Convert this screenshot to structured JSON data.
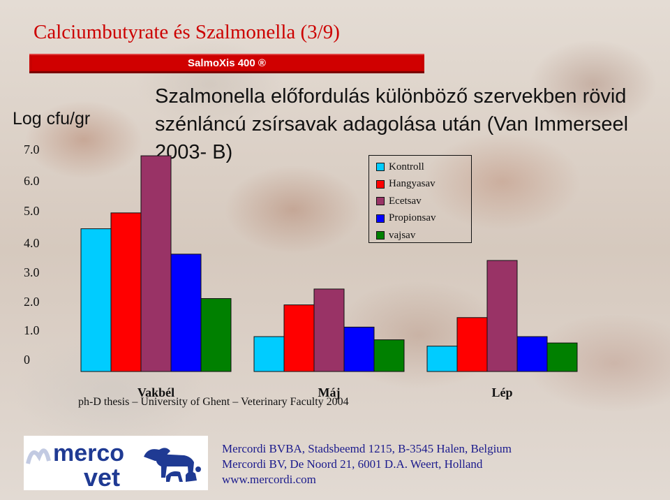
{
  "slide": {
    "title": "Calciumbutyrate és Szalmonella (3/9)",
    "brand_label": "SalmoXis 400 ®"
  },
  "colors": {
    "title": "#cc0000",
    "brand_bar": "#d00000",
    "company_text": "#1a1a8c",
    "logo_blue": "#1f3a93"
  },
  "chart_data": {
    "type": "bar",
    "title": "Szalmonella előfordulás különböző szervekben rövid szénláncú zsírsavak adagolása után (Van Immerseel 2003- B)",
    "ylabel": "Log cfu/gr",
    "ylim": [
      0,
      7
    ],
    "y_ticks": [
      "0",
      "1.0",
      "2.0",
      "3.0",
      "4.0",
      "5.0",
      "6.0",
      "7.0"
    ],
    "categories": [
      "Vakbél",
      "Máj",
      "Lép"
    ],
    "series": [
      {
        "name": "Kontroll",
        "color": "#00ccff",
        "values": [
          4.5,
          1.1,
          0.8
        ]
      },
      {
        "name": "Hangyasav",
        "color": "#ff0000",
        "values": [
          5.0,
          2.1,
          1.7
        ]
      },
      {
        "name": "Ecetsav",
        "color": "#993366",
        "values": [
          6.8,
          2.6,
          3.5
        ]
      },
      {
        "name": "Propionsav",
        "color": "#0000ff",
        "values": [
          3.7,
          1.4,
          1.1
        ]
      },
      {
        "name": "vajsav",
        "color": "#008000",
        "values": [
          2.3,
          1.0,
          0.9
        ]
      }
    ],
    "legend_position": "top-right",
    "grid": false
  },
  "source_note": "ph-D thesis – University of Ghent – Veterinary Faculty 2004",
  "logo": {
    "line1": "merco",
    "line2": "vet"
  },
  "company": {
    "line1": "Mercordi BVBA, Stadsbeemd 1215, B-3545 Halen, Belgium",
    "line2": "Mercordi BV, De Noord 21, 6001 D.A. Weert, Holland",
    "line3": "www.mercordi.com"
  }
}
